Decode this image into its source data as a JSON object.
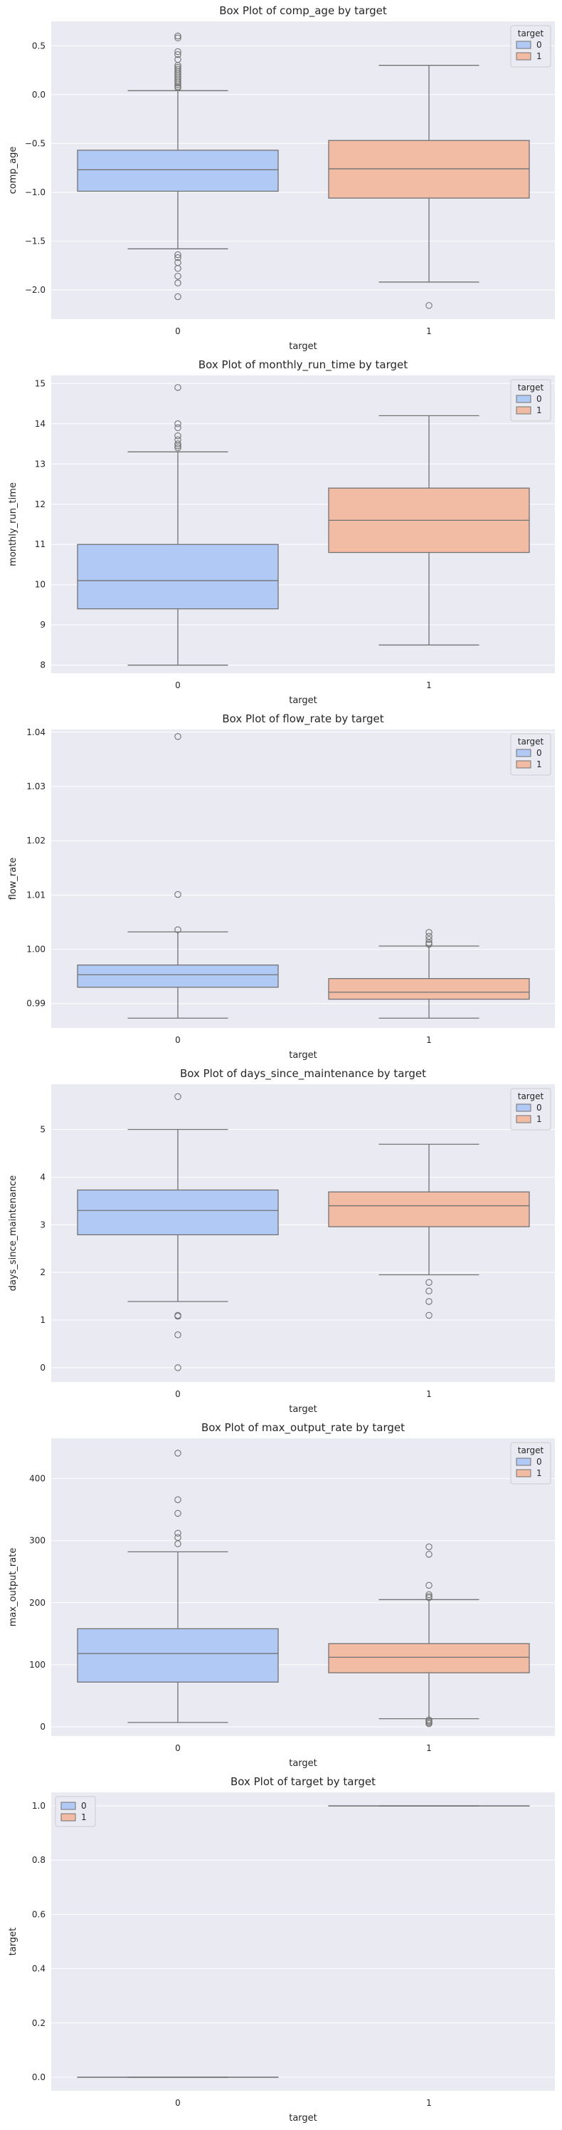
{
  "chart_data": [
    {
      "type": "box",
      "title": "Box Plot of comp_age by target",
      "xlabel": "target",
      "ylabel": "comp_age",
      "categories": [
        "0",
        "1"
      ],
      "ylim": [
        -2.3,
        0.75
      ],
      "yticks": [
        -2.0,
        -1.5,
        -1.0,
        -0.5,
        0.0,
        0.5
      ],
      "ytick_labels": [
        "−2.0",
        "−1.5",
        "−1.0",
        "−0.5",
        "0.0",
        "0.5"
      ],
      "legend": {
        "title": "target",
        "entries": [
          "0",
          "1"
        ],
        "position": "top-right"
      },
      "boxes": [
        {
          "category": "0",
          "whisker_low": -1.58,
          "q1": -0.99,
          "median": -0.77,
          "q3": -0.57,
          "whisker_high": 0.04,
          "outliers": [
            0.6,
            0.58,
            0.44,
            0.41,
            0.36,
            0.3,
            0.28,
            0.26,
            0.24,
            0.22,
            0.2,
            0.18,
            0.16,
            0.14,
            0.12,
            0.1,
            0.08,
            0.07,
            -1.64,
            -1.67,
            -1.72,
            -1.78,
            -1.86,
            -1.93,
            -2.07
          ]
        },
        {
          "category": "1",
          "whisker_low": -1.92,
          "q1": -1.06,
          "median": -0.76,
          "q3": -0.47,
          "whisker_high": 0.3,
          "outliers": [
            -2.16
          ]
        }
      ]
    },
    {
      "type": "box",
      "title": "Box Plot of monthly_run_time by target",
      "xlabel": "target",
      "ylabel": "monthly_run_time",
      "categories": [
        "0",
        "1"
      ],
      "ylim": [
        7.8,
        15.2
      ],
      "yticks": [
        8,
        9,
        10,
        11,
        12,
        13,
        14,
        15
      ],
      "ytick_labels": [
        "8",
        "9",
        "10",
        "11",
        "12",
        "13",
        "14",
        "15"
      ],
      "legend": {
        "title": "target",
        "entries": [
          "0",
          "1"
        ],
        "position": "top-right"
      },
      "boxes": [
        {
          "category": "0",
          "whisker_low": 8.0,
          "q1": 9.4,
          "median": 10.1,
          "q3": 11.0,
          "whisker_high": 13.3,
          "outliers": [
            14.9,
            14.0,
            13.9,
            13.7,
            13.6,
            13.5,
            13.45,
            13.4
          ]
        },
        {
          "category": "1",
          "whisker_low": 8.5,
          "q1": 10.8,
          "median": 11.6,
          "q3": 12.4,
          "whisker_high": 14.2,
          "outliers": []
        }
      ]
    },
    {
      "type": "box",
      "title": "Box Plot of flow_rate by target",
      "xlabel": "target",
      "ylabel": "flow_rate",
      "categories": [
        "0",
        "1"
      ],
      "ylim": [
        0.9855,
        1.0405
      ],
      "yticks": [
        0.99,
        1.0,
        1.01,
        1.02,
        1.03,
        1.04
      ],
      "ytick_labels": [
        "0.99",
        "1.00",
        "1.01",
        "1.02",
        "1.03",
        "1.04"
      ],
      "legend": {
        "title": "target",
        "entries": [
          "0",
          "1"
        ],
        "position": "top-right"
      },
      "boxes": [
        {
          "category": "0",
          "whisker_low": 0.9873,
          "q1": 0.993,
          "median": 0.9953,
          "q3": 0.9971,
          "whisker_high": 1.0032,
          "outliers": [
            1.0392,
            1.0101,
            1.0036
          ]
        },
        {
          "category": "1",
          "whisker_low": 0.9873,
          "q1": 0.9908,
          "median": 0.9921,
          "q3": 0.9946,
          "whisker_high": 1.0006,
          "outliers": [
            1.0031,
            1.0024,
            1.0018,
            1.0012,
            1.0009
          ]
        }
      ]
    },
    {
      "type": "box",
      "title": "Box Plot of days_since_maintenance by target",
      "xlabel": "target",
      "ylabel": "days_since_maintenance",
      "categories": [
        "0",
        "1"
      ],
      "ylim": [
        -0.3,
        5.95
      ],
      "yticks": [
        0,
        1,
        2,
        3,
        4,
        5
      ],
      "ytick_labels": [
        "0",
        "1",
        "2",
        "3",
        "4",
        "5"
      ],
      "legend": {
        "title": "target",
        "entries": [
          "0",
          "1"
        ],
        "position": "top-right"
      },
      "boxes": [
        {
          "category": "0",
          "whisker_low": 1.39,
          "q1": 2.79,
          "median": 3.3,
          "q3": 3.73,
          "whisker_high": 5.0,
          "outliers": [
            5.69,
            1.1,
            1.08,
            0.69,
            0.0
          ]
        },
        {
          "category": "1",
          "whisker_low": 1.95,
          "q1": 2.96,
          "median": 3.4,
          "q3": 3.69,
          "whisker_high": 4.69,
          "outliers": [
            1.79,
            1.61,
            1.39,
            1.1
          ]
        }
      ]
    },
    {
      "type": "box",
      "title": "Box Plot of max_output_rate by target",
      "xlabel": "target",
      "ylabel": "max_output_rate",
      "categories": [
        "0",
        "1"
      ],
      "ylim": [
        -15,
        465
      ],
      "yticks": [
        0,
        100,
        200,
        300,
        400
      ],
      "ytick_labels": [
        "0",
        "100",
        "200",
        "300",
        "400"
      ],
      "legend": {
        "title": "target",
        "entries": [
          "0",
          "1"
        ],
        "position": "top-right"
      },
      "boxes": [
        {
          "category": "0",
          "whisker_low": 7,
          "q1": 72,
          "median": 118,
          "q3": 158,
          "whisker_high": 282,
          "outliers": [
            441,
            366,
            344,
            312,
            305,
            295
          ]
        },
        {
          "category": "1",
          "whisker_low": 13,
          "q1": 87,
          "median": 112,
          "q3": 134,
          "whisker_high": 205,
          "outliers": [
            290,
            278,
            228,
            213,
            210,
            208,
            11,
            9,
            7,
            5
          ]
        }
      ]
    },
    {
      "type": "box",
      "title": "Box Plot of target by target",
      "xlabel": "target",
      "ylabel": "target",
      "categories": [
        "0",
        "1"
      ],
      "ylim": [
        -0.05,
        1.05
      ],
      "yticks": [
        0.0,
        0.2,
        0.4,
        0.6,
        0.8,
        1.0
      ],
      "ytick_labels": [
        "0.0",
        "0.2",
        "0.4",
        "0.6",
        "0.8",
        "1.0"
      ],
      "legend": {
        "title": "",
        "entries": [
          "0",
          "1"
        ],
        "position": "top-left"
      },
      "boxes": [
        {
          "category": "0",
          "whisker_low": 0,
          "q1": 0,
          "median": 0,
          "q3": 0,
          "whisker_high": 0,
          "outliers": []
        },
        {
          "category": "1",
          "whisker_low": 1,
          "q1": 1,
          "median": 1,
          "q3": 1,
          "whisker_high": 1,
          "outliers": []
        }
      ]
    }
  ],
  "colors": {
    "panel_background": "#EAEAF2",
    "grid": "#FFFFFF",
    "series_0": "#B0C9F5",
    "series_1": "#F2BBA3",
    "box_edge": "#737373",
    "text": "#262626"
  }
}
